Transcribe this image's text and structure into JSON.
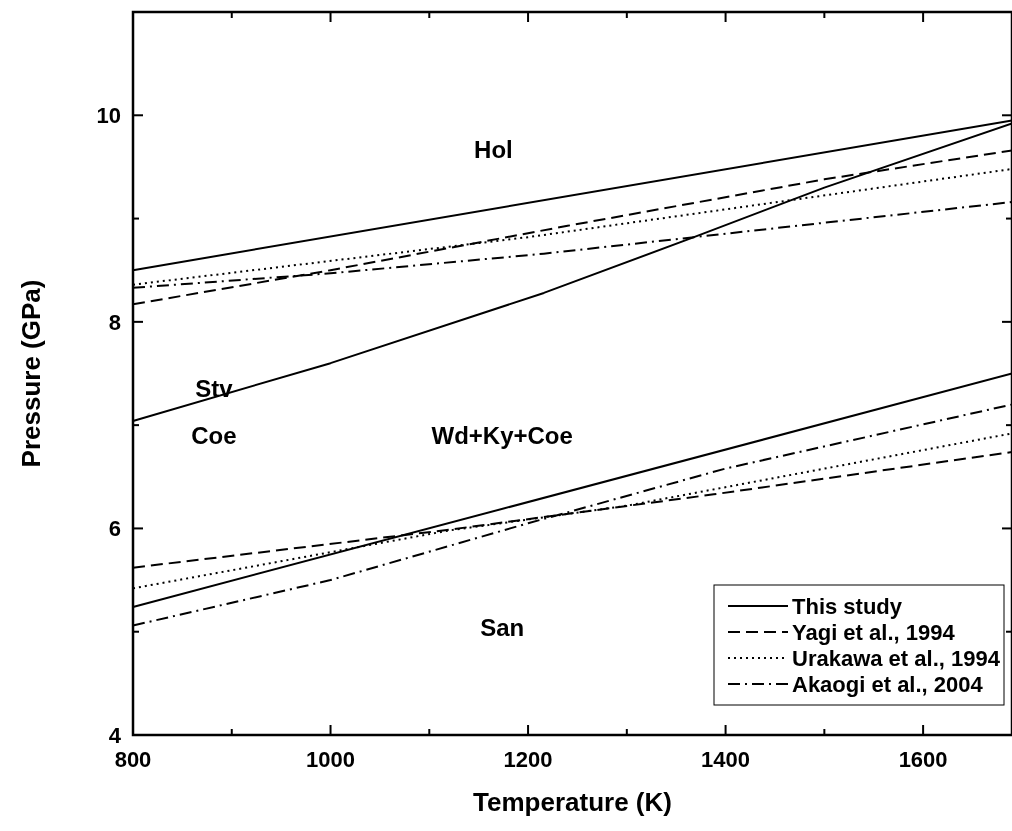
{
  "chart_data": {
    "type": "line",
    "xlabel": "Temperature (K)",
    "ylabel": "Pressure (GPa)",
    "xlim": [
      800,
      1690
    ],
    "ylim": [
      4,
      11
    ],
    "xticks": [
      800,
      {
        "value": 900,
        "label": null
      },
      1000,
      {
        "value": 1100,
        "label": null
      },
      1200,
      {
        "value": 1300,
        "label": null
      },
      1400,
      {
        "value": 1500,
        "label": null
      },
      1600
    ],
    "yticks": [
      4,
      {
        "value": 5,
        "label": null
      },
      6,
      {
        "value": 7,
        "label": null
      },
      8,
      {
        "value": 9,
        "label": null
      },
      10
    ],
    "grid": false,
    "legend": "bottom right",
    "series": [
      {
        "name": "This study",
        "color": "#000000",
        "line_style": "solid",
        "x": [
          800,
          1690
        ],
        "values": [
          8.5,
          9.95
        ]
      },
      {
        "color": "#000000",
        "line_style": "solid",
        "x": [
          800,
          1000,
          1216,
          1368,
          1500,
          1690
        ],
        "values": [
          7.04,
          7.6,
          8.28,
          8.82,
          9.3,
          9.92
        ]
      },
      {
        "color": "#000000",
        "line_style": "solid",
        "x": [
          800,
          1690
        ],
        "values": [
          5.24,
          7.5
        ]
      },
      {
        "name": "Yagi et al., 1994",
        "color": "#000000",
        "line_style": "dashed",
        "x": [
          800,
          1000,
          1240,
          1500,
          1690
        ],
        "values": [
          8.17,
          8.5,
          8.93,
          9.38,
          9.66
        ]
      },
      {
        "color": "#000000",
        "line_style": "dashed",
        "x": [
          800,
          1122,
          1388,
          1690
        ],
        "values": [
          5.62,
          5.99,
          6.33,
          6.74
        ]
      },
      {
        "name": "Urakawa et al., 1994",
        "color": "#000000",
        "line_style": "dotted",
        "x": [
          800,
          1200,
          1690
        ],
        "values": [
          8.36,
          8.82,
          9.48
        ]
      },
      {
        "color": "#000000",
        "line_style": "dotted",
        "x": [
          800,
          1120,
          1300,
          1690
        ],
        "values": [
          5.42,
          5.98,
          6.22,
          6.92
        ]
      },
      {
        "name": "Akaogi et al., 2004",
        "color": "#000000",
        "line_style": "dashdot",
        "x": [
          800,
          1000,
          1216,
          1368,
          1690
        ],
        "values": [
          8.33,
          8.47,
          8.66,
          8.82,
          9.16
        ]
      },
      {
        "color": "#000000",
        "line_style": "dashdot",
        "x": [
          800,
          1000,
          1200,
          1400,
          1690
        ],
        "values": [
          5.06,
          5.5,
          6.05,
          6.58,
          7.2
        ]
      }
    ],
    "annotations": [
      "Hol",
      "Stv",
      "Coe",
      "Wd+Ky+Coe",
      "San"
    ]
  }
}
